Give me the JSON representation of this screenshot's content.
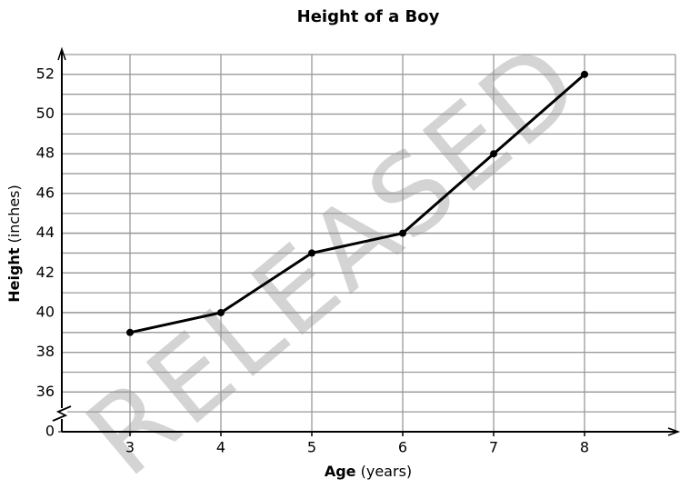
{
  "chart_data": {
    "type": "line",
    "title": "Height of a Boy",
    "xlabel": {
      "bold": "Age",
      "rest": "(years)"
    },
    "ylabel": {
      "bold": "Height",
      "rest": "(inches)"
    },
    "watermark": "RELEASED",
    "x": [
      3,
      4,
      5,
      6,
      7,
      8
    ],
    "series": [
      {
        "name": "Height",
        "color": "#000000",
        "values": [
          39,
          40,
          43,
          44,
          48,
          52
        ]
      }
    ],
    "xlim": [
      2.25,
      9
    ],
    "xticks": [
      3,
      4,
      5,
      6,
      7,
      8
    ],
    "ylim": [
      0,
      53
    ],
    "yticks": [
      0,
      36,
      38,
      40,
      42,
      44,
      46,
      48,
      50,
      52
    ],
    "axis_break": true,
    "grid": true
  }
}
